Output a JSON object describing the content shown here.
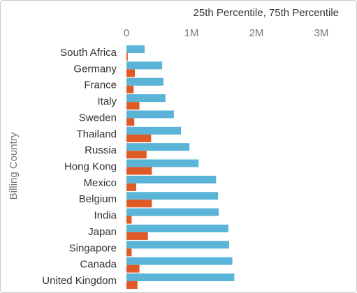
{
  "chart_data": {
    "type": "bar",
    "orientation": "horizontal",
    "title": "25th Percentile, 75th Percentile",
    "y_label": "Billing Country",
    "categories": [
      "South Africa",
      "Germany",
      "France",
      "Italy",
      "Sweden",
      "Thailand",
      "Russia",
      "Hong Kong",
      "Mexico",
      "Belgium",
      "India",
      "Japan",
      "Singapore",
      "Canada",
      "United Kingdom"
    ],
    "series": [
      {
        "color": "#5ab4d8",
        "values": [
          280000,
          550000,
          570000,
          600000,
          730000,
          840000,
          970000,
          1110000,
          1380000,
          1410000,
          1420000,
          1570000,
          1580000,
          1630000,
          1660000
        ]
      },
      {
        "color": "#e05a28",
        "values": [
          20000,
          130000,
          110000,
          200000,
          120000,
          380000,
          310000,
          390000,
          150000,
          390000,
          80000,
          330000,
          80000,
          200000,
          170000
        ]
      }
    ],
    "xlim": [
      0,
      3430000
    ],
    "xticks": [
      0,
      {
        "value": 1000000,
        "label": "1M"
      },
      {
        "value": 2000000,
        "label": "2M"
      },
      {
        "value": 3000000,
        "label": "3M"
      }
    ]
  }
}
